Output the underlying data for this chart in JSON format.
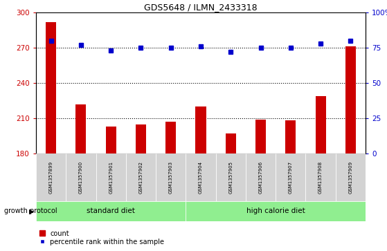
{
  "title": "GDS5648 / ILMN_2433318",
  "samples": [
    "GSM1357899",
    "GSM1357900",
    "GSM1357901",
    "GSM1357902",
    "GSM1357903",
    "GSM1357904",
    "GSM1357905",
    "GSM1357906",
    "GSM1357907",
    "GSM1357908",
    "GSM1357909"
  ],
  "bar_values": [
    292,
    222,
    203,
    205,
    207,
    220,
    197,
    209,
    208,
    229,
    271
  ],
  "dot_values": [
    80,
    77,
    73,
    75,
    75,
    76,
    72,
    75,
    75,
    78,
    80
  ],
  "bar_color": "#cc0000",
  "dot_color": "#0000cc",
  "ylim_left": [
    180,
    300
  ],
  "ylim_right": [
    0,
    100
  ],
  "yticks_left": [
    180,
    210,
    240,
    270,
    300
  ],
  "yticks_right": [
    0,
    25,
    50,
    75,
    100
  ],
  "ytick_labels_right": [
    "0",
    "25",
    "50",
    "75",
    "100%"
  ],
  "hlines": [
    210,
    240,
    270
  ],
  "group1_label": "standard diet",
  "group2_label": "high calorie diet",
  "group1_indices": [
    0,
    1,
    2,
    3,
    4
  ],
  "group2_indices": [
    5,
    6,
    7,
    8,
    9,
    10
  ],
  "growth_protocol_label": "growth protocol",
  "legend_bar_label": "count",
  "legend_dot_label": "percentile rank within the sample",
  "group_bg_color": "#90ee90",
  "sample_bg_color": "#d3d3d3",
  "fig_width": 5.59,
  "fig_height": 3.63,
  "dpi": 100
}
